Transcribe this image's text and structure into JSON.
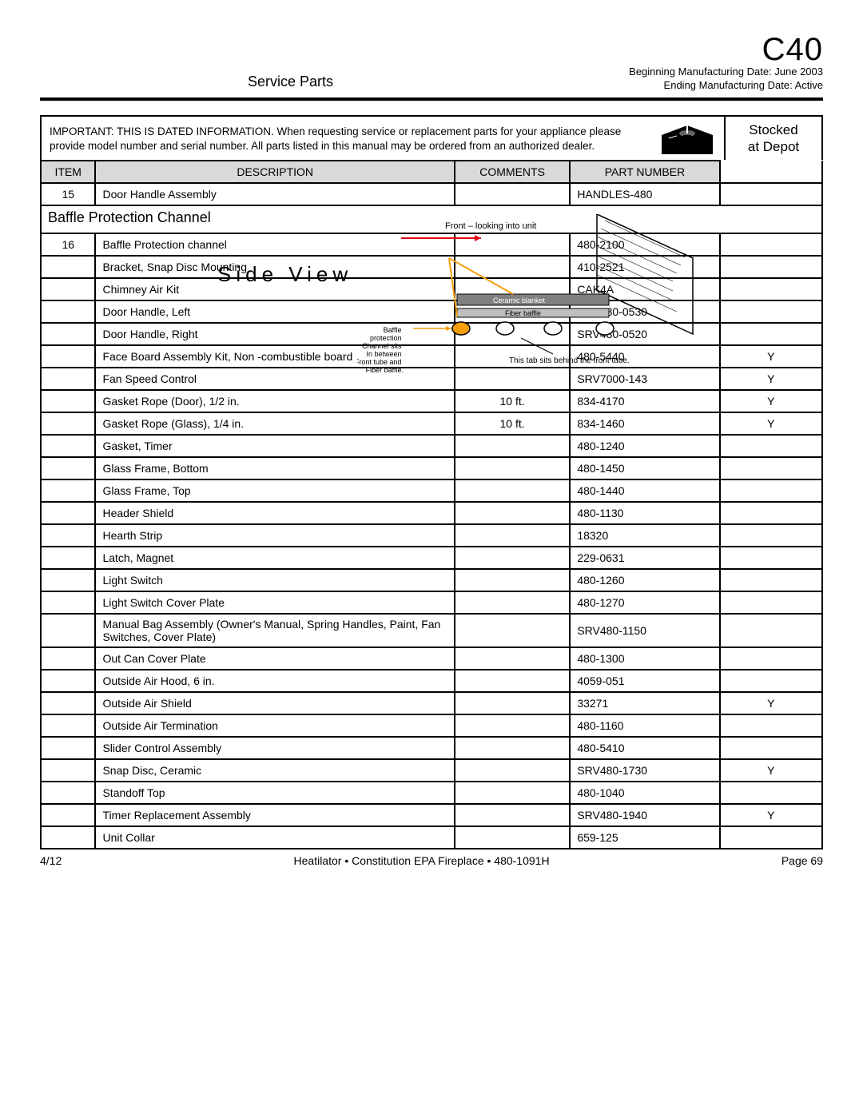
{
  "header": {
    "model_code": "C40",
    "service_parts": "Service Parts",
    "mfg_begin": "Beginning Manufacturing Date:  June 2003",
    "mfg_end": "Ending Manufacturing Date: Active"
  },
  "notice": {
    "text": "IMPORTANT: THIS IS DATED INFORMATION. When requesting service or replacement parts for your appliance please provide model number and serial number. All parts listed in this manual may be ordered from an authorized dealer.",
    "stocked_line1": "Stocked",
    "stocked_line2": "at Depot"
  },
  "columns": {
    "item": "ITEM",
    "description": "DESCRIPTION",
    "comments": "COMMENTS",
    "part_number": "PART NUMBER"
  },
  "diagram": {
    "title": "Baffle Protection Channel",
    "side_view": "Side View",
    "front_label": "Front – looking into unit",
    "ceramic_label": "Ceramic blanket",
    "fiber_label": "Fiber baffle",
    "tab_note": "This tab sits behind the front tube.",
    "channel_note": "Baffle\nprotection\nChannel sits\nIn between\nFront tube and\nFiber baffle."
  },
  "rows": [
    {
      "item": "15",
      "desc": "Door Handle Assembly",
      "comm": "",
      "part": "HANDLES-480",
      "stock": ""
    },
    {
      "item": "16",
      "desc": "Baffle Protection channel",
      "comm": "",
      "part": "480-2100",
      "stock": ""
    },
    {
      "item": "",
      "desc": "Bracket, Snap Disc Mounting",
      "comm": "",
      "part": "410-2521",
      "stock": ""
    },
    {
      "item": "",
      "desc": "Chimney Air Kit",
      "comm": "",
      "part": "CAK4A",
      "stock": ""
    },
    {
      "item": "",
      "desc": "Door Handle, Left",
      "comm": "",
      "part": "SRV480-0530",
      "stock": ""
    },
    {
      "item": "",
      "desc": "Door Handle, Right",
      "comm": "",
      "part": "SRV480-0520",
      "stock": ""
    },
    {
      "item": "",
      "desc": "Face Board Assembly Kit, Non -combustible board",
      "comm": "",
      "part": "480-5440",
      "stock": "Y"
    },
    {
      "item": "",
      "desc": "Fan Speed Control",
      "comm": "",
      "part": "SRV7000-143",
      "stock": "Y"
    },
    {
      "item": "",
      "desc": "Gasket Rope (Door), 1/2 in.",
      "comm": "10 ft.",
      "part": "834-4170",
      "stock": "Y"
    },
    {
      "item": "",
      "desc": "Gasket Rope (Glass), 1/4 in.",
      "comm": "10 ft.",
      "part": "834-1460",
      "stock": "Y"
    },
    {
      "item": "",
      "desc": "Gasket, Timer",
      "comm": "",
      "part": "480-1240",
      "stock": ""
    },
    {
      "item": "",
      "desc": "Glass Frame, Bottom",
      "comm": "",
      "part": "480-1450",
      "stock": ""
    },
    {
      "item": "",
      "desc": "Glass Frame, Top",
      "comm": "",
      "part": "480-1440",
      "stock": ""
    },
    {
      "item": "",
      "desc": "Header Shield",
      "comm": "",
      "part": "480-1130",
      "stock": ""
    },
    {
      "item": "",
      "desc": "Hearth Strip",
      "comm": "",
      "part": "18320",
      "stock": ""
    },
    {
      "item": "",
      "desc": "Latch, Magnet",
      "comm": "",
      "part": "229-0631",
      "stock": ""
    },
    {
      "item": "",
      "desc": "Light Switch",
      "comm": "",
      "part": "480-1260",
      "stock": ""
    },
    {
      "item": "",
      "desc": "Light Switch Cover Plate",
      "comm": "",
      "part": "480-1270",
      "stock": ""
    },
    {
      "item": "",
      "desc": "Manual Bag Assembly (Owner's Manual, Spring Handles, Paint, Fan Switches, Cover Plate)",
      "comm": "",
      "part": "SRV480-1150",
      "stock": ""
    },
    {
      "item": "",
      "desc": "Out Can Cover Plate",
      "comm": "",
      "part": "480-1300",
      "stock": ""
    },
    {
      "item": "",
      "desc": "Outside Air Hood, 6 in.",
      "comm": "",
      "part": "4059-051",
      "stock": ""
    },
    {
      "item": "",
      "desc": "Outside Air Shield",
      "comm": "",
      "part": "33271",
      "stock": "Y"
    },
    {
      "item": "",
      "desc": "Outside Air Termination",
      "comm": "",
      "part": "480-1160",
      "stock": ""
    },
    {
      "item": "",
      "desc": "Slider Control Assembly",
      "comm": "",
      "part": "480-5410",
      "stock": ""
    },
    {
      "item": "",
      "desc": "Snap Disc, Ceramic",
      "comm": "",
      "part": "SRV480-1730",
      "stock": "Y"
    },
    {
      "item": "",
      "desc": "Standoff Top",
      "comm": "",
      "part": "480-1040",
      "stock": ""
    },
    {
      "item": "",
      "desc": "Timer Replacement Assembly",
      "comm": "",
      "part": "SRV480-1940",
      "stock": "Y"
    },
    {
      "item": "",
      "desc": "Unit Collar",
      "comm": "",
      "part": "659-125",
      "stock": ""
    }
  ],
  "footer": {
    "date": "4/12",
    "center": "Heatilator • Constitution EPA Fireplace • 480-1091H",
    "page": "Page  69"
  },
  "colors": {
    "header_bg": "#d9d9d9",
    "accent_red": "#e30613",
    "accent_orange": "#f59e0b"
  }
}
